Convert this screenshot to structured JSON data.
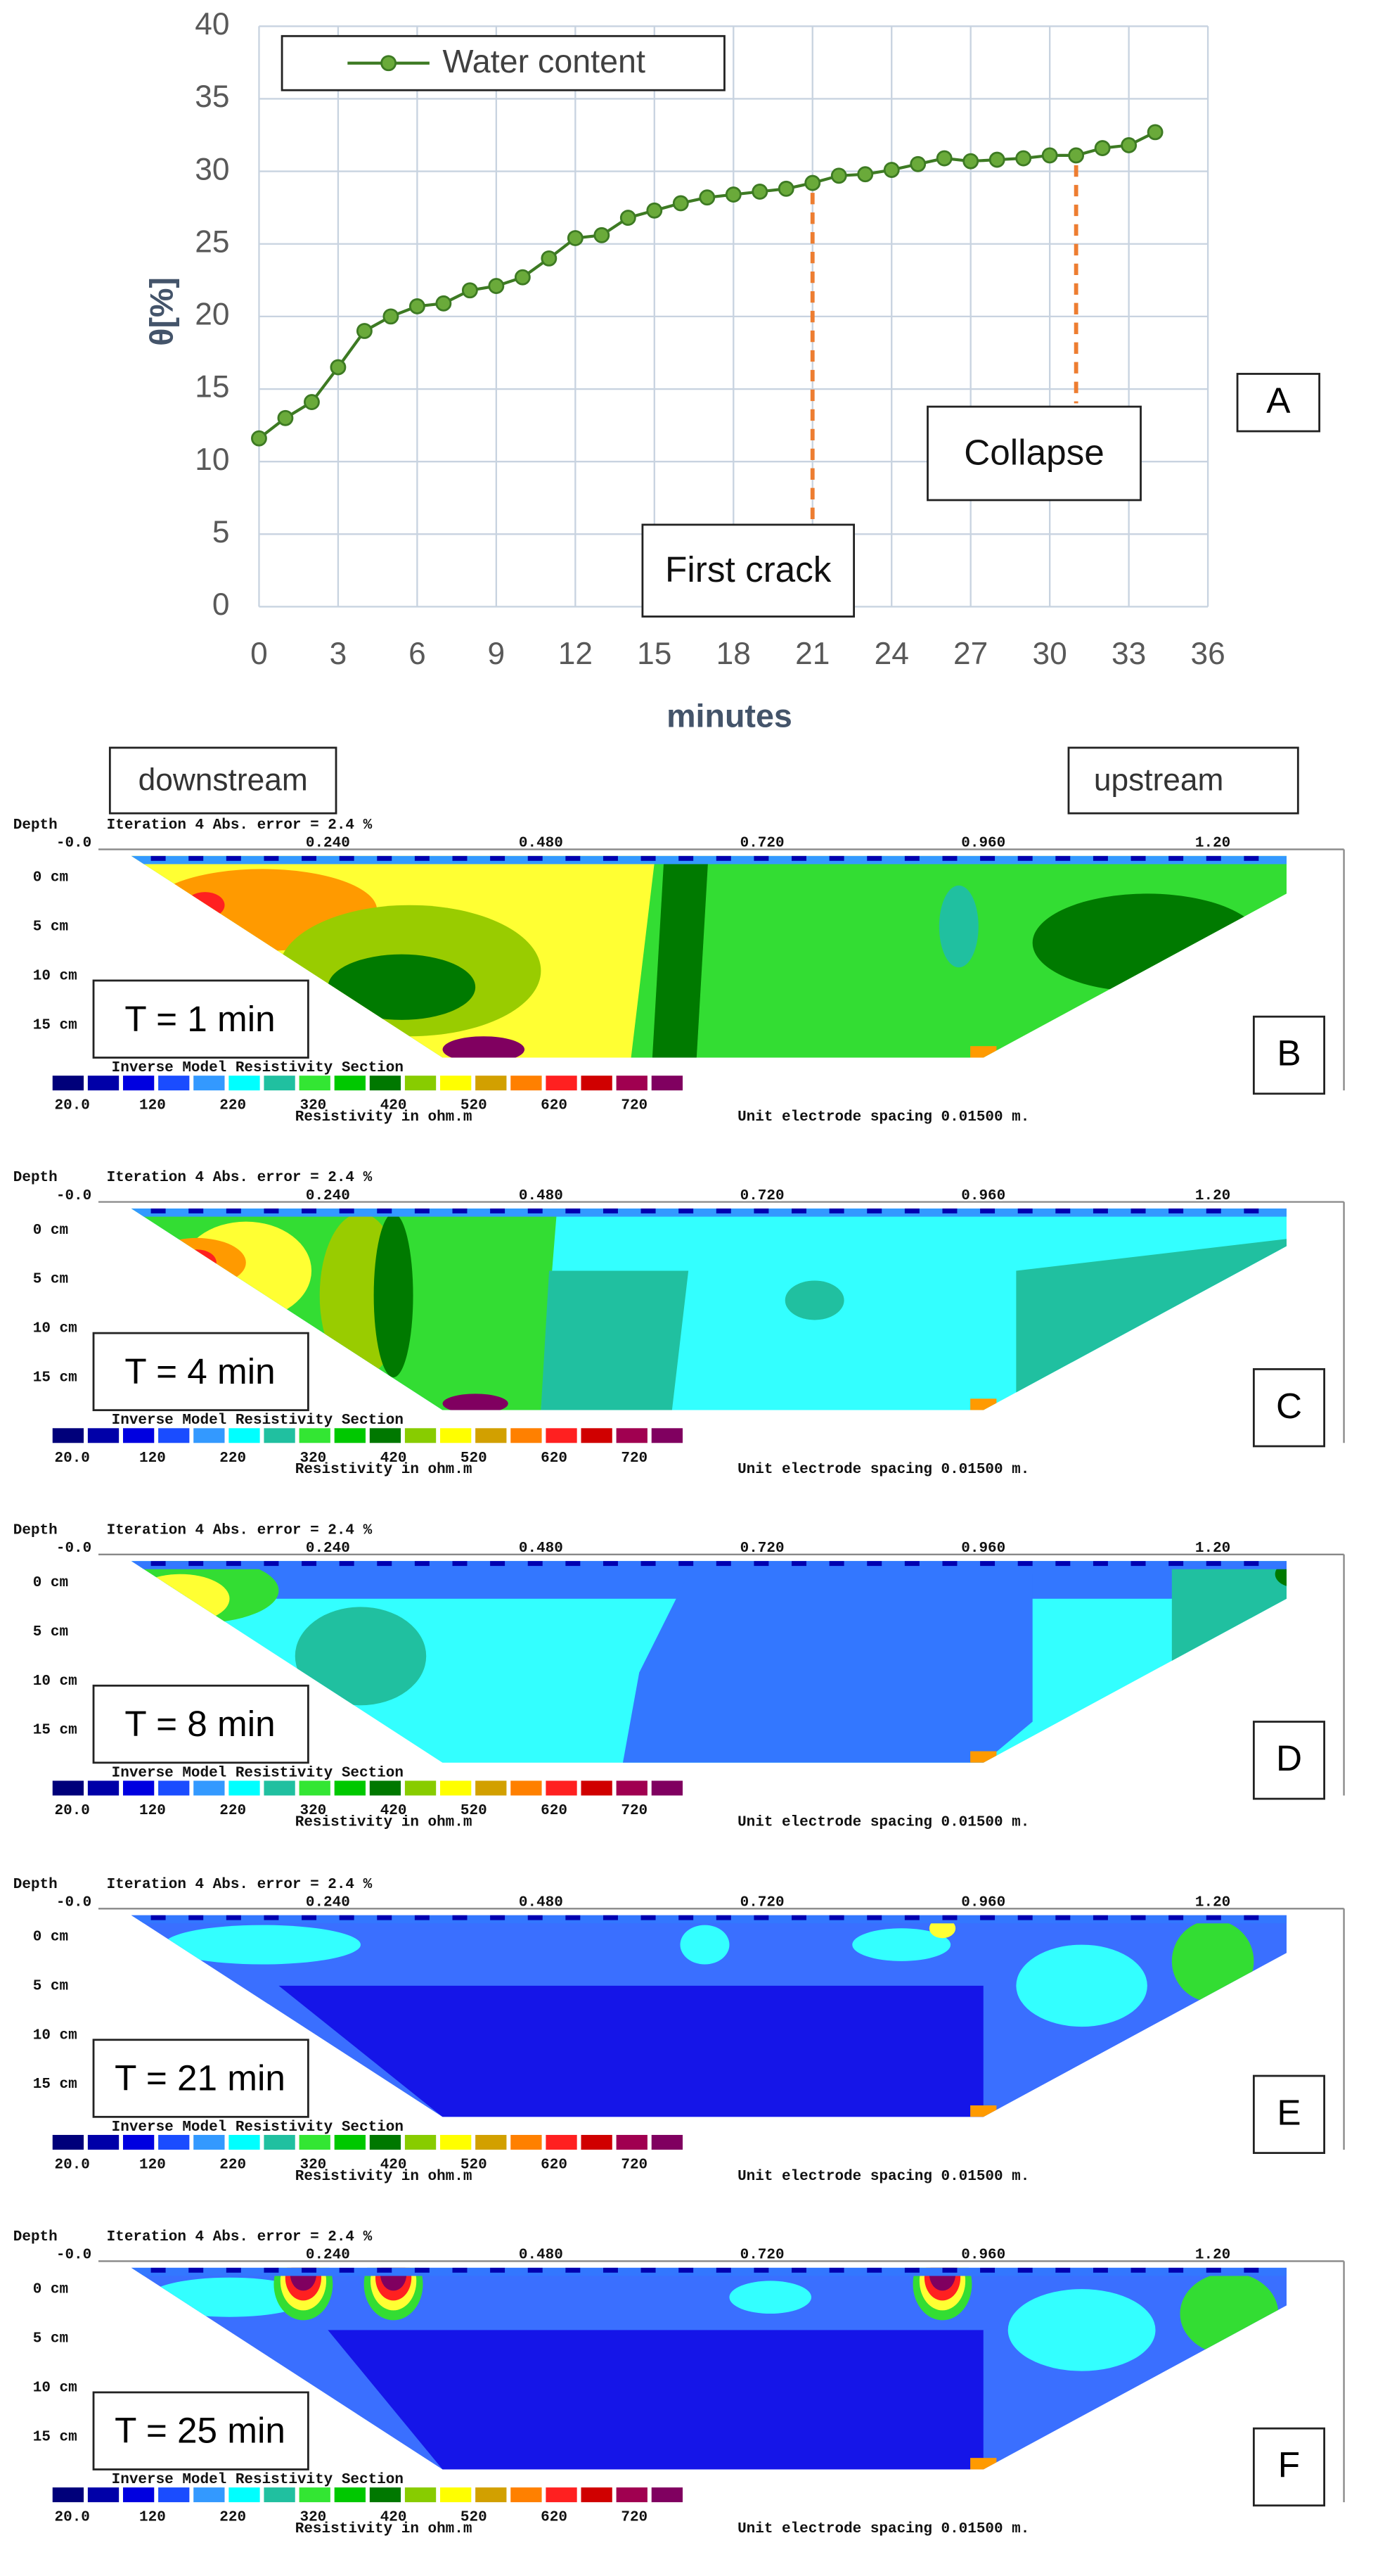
{
  "chart_data": {
    "type": "line",
    "panel": "A",
    "xlabel": "minutes",
    "ylabel": "θ[%]",
    "x": [
      0,
      1,
      2,
      3,
      4,
      5,
      6,
      7,
      8,
      9,
      10,
      11,
      12,
      13,
      14,
      15,
      16,
      17,
      18,
      19,
      20,
      21,
      22,
      23,
      24,
      25,
      26,
      27,
      28,
      29,
      30,
      31,
      32,
      33,
      34
    ],
    "series": [
      {
        "name": "Water content",
        "color": "#3d7a23",
        "values": [
          11.6,
          13,
          14.1,
          16.5,
          19,
          20,
          20.7,
          20.9,
          21.8,
          22.1,
          22.7,
          24,
          25.4,
          25.6,
          26.8,
          27.3,
          27.8,
          28.2,
          28.4,
          28.6,
          28.8,
          29.2,
          29.7,
          29.8,
          30.1,
          30.5,
          30.9,
          30.7,
          30.8,
          30.9,
          31.1,
          31.1,
          31.6,
          31.8,
          32.7
        ]
      }
    ],
    "xlim": [
      0,
      36
    ],
    "ylim": [
      0,
      40
    ],
    "xticks": [
      0,
      3,
      6,
      9,
      12,
      15,
      18,
      21,
      24,
      27,
      30,
      33,
      36
    ],
    "yticks": [
      0,
      5,
      10,
      15,
      20,
      25,
      30,
      35,
      40
    ],
    "grid": true,
    "legend": "upper left",
    "annotations": [
      {
        "text": "First crack",
        "x": 21
      },
      {
        "text": "Collapse",
        "x": 31
      }
    ]
  },
  "sections": {
    "header_left": "downstream",
    "header_right": "upstream",
    "depth_title": "Depth",
    "iteration": "Iteration 4 Abs. error = 2.4 %",
    "x_labels": [
      "-0.0",
      "0.240",
      "0.480",
      "0.720",
      "0.960",
      "1.20"
    ],
    "depth_labels": [
      "0 cm",
      "5 cm",
      "10 cm",
      "15 cm"
    ],
    "legend_title": "Inverse Model Resistivity Section",
    "legend_values": [
      "20.0",
      "120",
      "220",
      "320",
      "420",
      "520",
      "620",
      "720"
    ],
    "legend_unit": "Resistivity in ohm.m",
    "spacing": "Unit electrode spacing 0.01500 m.",
    "panels": [
      {
        "letter": "B",
        "time": "T = 1 min"
      },
      {
        "letter": "C",
        "time": "T = 4 min"
      },
      {
        "letter": "D",
        "time": "T = 8 min"
      },
      {
        "letter": "E",
        "time": "T = 21 min"
      },
      {
        "letter": "F",
        "time": "T = 25 min"
      }
    ]
  }
}
